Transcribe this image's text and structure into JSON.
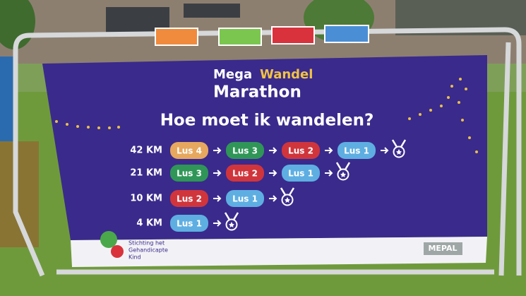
{
  "banner": {
    "title": {
      "mega": "Mega",
      "wandel": "Wandel",
      "marathon": "Marathon"
    },
    "question": "Hoe moet ik wandelen?",
    "routes": [
      {
        "distance": "42 KM",
        "loops": [
          {
            "label": "Lus 4",
            "color": "#e6a85e"
          },
          {
            "label": "Lus 3",
            "color": "#2f9657"
          },
          {
            "label": "Lus 2",
            "color": "#d0353c"
          },
          {
            "label": "Lus 1",
            "color": "#5eaee2"
          }
        ]
      },
      {
        "distance": "21 KM",
        "loops": [
          {
            "label": "Lus 3",
            "color": "#2f9657"
          },
          {
            "label": "Lus 2",
            "color": "#d0353c"
          },
          {
            "label": "Lus 1",
            "color": "#5eaee2"
          }
        ]
      },
      {
        "distance": "10 KM",
        "loops": [
          {
            "label": "Lus 2",
            "color": "#d0353c"
          },
          {
            "label": "Lus 1",
            "color": "#5eaee2"
          }
        ]
      },
      {
        "distance": "4 KM",
        "loops": [
          {
            "label": "Lus 1",
            "color": "#5eaee2"
          }
        ]
      }
    ],
    "sponsor": [
      "Stichting het",
      "Gehandicapte",
      "Kind"
    ],
    "brand": "MEPAL"
  }
}
